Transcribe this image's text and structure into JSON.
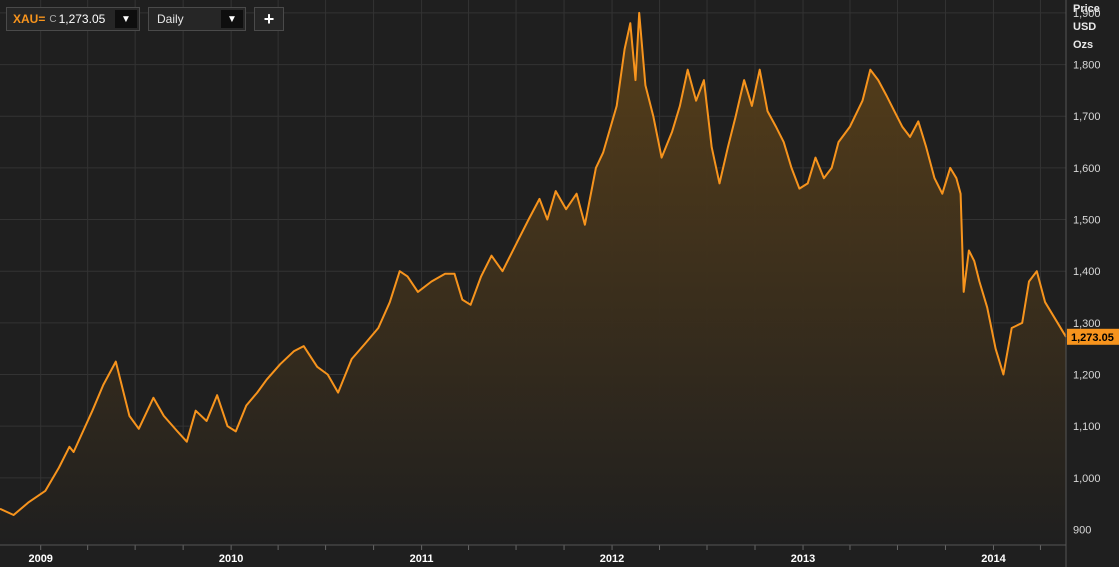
{
  "toolbar": {
    "symbol": "XAU=",
    "close_marker": "C",
    "last_value": "1,273.05",
    "interval": "Daily",
    "dropdown_glyph": "▼",
    "add_glyph": "+"
  },
  "colors": {
    "line": "#f7941d",
    "background": "#1f1f1f",
    "grid": "#333333",
    "fill_top": "#5a4019"
  },
  "chart_data": {
    "type": "area",
    "title": "",
    "ylabel": [
      "Price",
      "USD",
      "Ozs"
    ],
    "xlabel": "",
    "ylim": [
      870,
      1925
    ],
    "xlim": [
      "2008-10-15",
      "2014-05-20"
    ],
    "grid": true,
    "y_ticks": [
      900,
      1000,
      1100,
      1200,
      1300,
      1400,
      1500,
      1600,
      1700,
      1800,
      1900
    ],
    "y_tick_labels": [
      "900",
      "1,000",
      "1,100",
      "1,200",
      "1,300",
      "1,400",
      "1,500",
      "1,600",
      "1,700",
      "1,800",
      "1,900"
    ],
    "x_ticks": [
      {
        "label": "2009",
        "date": "2009-01-01"
      },
      {
        "label": "2010",
        "date": "2010-01-01"
      },
      {
        "label": "2011",
        "date": "2011-01-01"
      },
      {
        "label": "2012",
        "date": "2012-01-01"
      },
      {
        "label": "2013",
        "date": "2013-01-01"
      },
      {
        "label": "2014",
        "date": "2014-01-01"
      }
    ],
    "last_value_label": "1,273.05",
    "last_value": 1273.05,
    "series": [
      {
        "points": [
          [
            "2008-10-15",
            940
          ],
          [
            "2008-11-10",
            928
          ],
          [
            "2008-12-08",
            952
          ],
          [
            "2009-01-10",
            975
          ],
          [
            "2009-02-05",
            1020
          ],
          [
            "2009-02-25",
            1060
          ],
          [
            "2009-03-05",
            1050
          ],
          [
            "2009-04-10",
            1130
          ],
          [
            "2009-05-01",
            1180
          ],
          [
            "2009-05-25",
            1225
          ],
          [
            "2009-06-20",
            1120
          ],
          [
            "2009-07-08",
            1095
          ],
          [
            "2009-08-05",
            1155
          ],
          [
            "2009-08-25",
            1120
          ],
          [
            "2009-09-20",
            1090
          ],
          [
            "2009-10-08",
            1070
          ],
          [
            "2009-10-25",
            1130
          ],
          [
            "2009-11-15",
            1110
          ],
          [
            "2009-12-05",
            1160
          ],
          [
            "2009-12-25",
            1100
          ],
          [
            "2010-01-10",
            1090
          ],
          [
            "2010-01-30",
            1140
          ],
          [
            "2010-02-20",
            1165
          ],
          [
            "2010-03-10",
            1190
          ],
          [
            "2010-04-05",
            1220
          ],
          [
            "2010-05-01",
            1245
          ],
          [
            "2010-05-20",
            1255
          ],
          [
            "2010-06-15",
            1215
          ],
          [
            "2010-07-05",
            1200
          ],
          [
            "2010-07-25",
            1165
          ],
          [
            "2010-08-20",
            1230
          ],
          [
            "2010-09-15",
            1260
          ],
          [
            "2010-10-10",
            1290
          ],
          [
            "2010-11-01",
            1340
          ],
          [
            "2010-11-20",
            1400
          ],
          [
            "2010-12-05",
            1390
          ],
          [
            "2010-12-25",
            1360
          ],
          [
            "2011-01-20",
            1380
          ],
          [
            "2011-02-15",
            1395
          ],
          [
            "2011-03-05",
            1395
          ],
          [
            "2011-03-20",
            1345
          ],
          [
            "2011-04-05",
            1335
          ],
          [
            "2011-04-25",
            1390
          ],
          [
            "2011-05-15",
            1430
          ],
          [
            "2011-06-05",
            1400
          ],
          [
            "2011-07-05",
            1460
          ],
          [
            "2011-07-25",
            1500
          ],
          [
            "2011-08-15",
            1540
          ],
          [
            "2011-08-30",
            1500
          ],
          [
            "2011-09-15",
            1555
          ],
          [
            "2011-10-05",
            1520
          ],
          [
            "2011-10-25",
            1550
          ],
          [
            "2011-11-10",
            1490
          ],
          [
            "2011-12-01",
            1600
          ],
          [
            "2011-12-15",
            1630
          ],
          [
            "2012-01-10",
            1720
          ],
          [
            "2012-01-25",
            1830
          ],
          [
            "2012-02-05",
            1880
          ],
          [
            "2012-02-15",
            1770
          ],
          [
            "2012-02-22",
            1900
          ],
          [
            "2012-03-05",
            1760
          ],
          [
            "2012-03-20",
            1700
          ],
          [
            "2012-04-05",
            1620
          ],
          [
            "2012-04-25",
            1670
          ],
          [
            "2012-05-10",
            1720
          ],
          [
            "2012-05-25",
            1790
          ],
          [
            "2012-06-10",
            1730
          ],
          [
            "2012-06-25",
            1770
          ],
          [
            "2012-07-10",
            1640
          ],
          [
            "2012-07-25",
            1570
          ],
          [
            "2012-08-10",
            1640
          ],
          [
            "2012-08-25",
            1700
          ],
          [
            "2012-09-10",
            1770
          ],
          [
            "2012-09-25",
            1720
          ],
          [
            "2012-10-10",
            1790
          ],
          [
            "2012-10-25",
            1710
          ],
          [
            "2012-11-10",
            1680
          ],
          [
            "2012-11-25",
            1650
          ],
          [
            "2012-12-10",
            1600
          ],
          [
            "2012-12-25",
            1560
          ],
          [
            "2013-01-10",
            1570
          ],
          [
            "2013-01-25",
            1620
          ],
          [
            "2013-02-10",
            1580
          ],
          [
            "2013-02-25",
            1600
          ],
          [
            "2013-03-10",
            1650
          ],
          [
            "2013-04-01",
            1680
          ],
          [
            "2013-04-25",
            1730
          ],
          [
            "2013-05-10",
            1790
          ],
          [
            "2013-05-25",
            1770
          ],
          [
            "2013-06-10",
            1740
          ],
          [
            "2013-06-25",
            1710
          ],
          [
            "2013-07-10",
            1680
          ],
          [
            "2013-07-25",
            1660
          ],
          [
            "2013-08-10",
            1690
          ],
          [
            "2013-08-25",
            1640
          ],
          [
            "2013-09-10",
            1580
          ],
          [
            "2013-09-25",
            1550
          ],
          [
            "2013-10-10",
            1600
          ],
          [
            "2013-10-22",
            1580
          ],
          [
            "2013-10-30",
            1550
          ],
          [
            "2013-11-05",
            1360
          ],
          [
            "2013-11-15",
            1440
          ],
          [
            "2013-11-25",
            1420
          ],
          [
            "2013-12-05",
            1380
          ],
          [
            "2013-12-20",
            1330
          ],
          [
            "2014-01-05",
            1250
          ],
          [
            "2014-01-20",
            1200
          ],
          [
            "2014-02-05",
            1290
          ],
          [
            "2014-02-25",
            1300
          ],
          [
            "2014-03-10",
            1380
          ],
          [
            "2014-03-25",
            1400
          ],
          [
            "2014-04-10",
            1340
          ],
          [
            "2014-05-20",
            1273.05
          ]
        ]
      }
    ]
  }
}
